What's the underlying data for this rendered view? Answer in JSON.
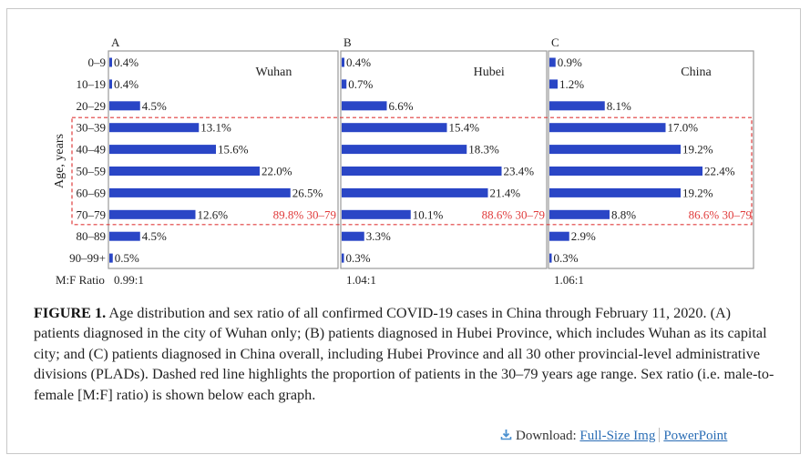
{
  "chart_data": {
    "type": "bar",
    "orientation": "horizontal",
    "ylabel": "Age, years",
    "categories": [
      "0–9",
      "10–19",
      "20–29",
      "30–39",
      "40–49",
      "50–59",
      "60–69",
      "70–79",
      "80–89",
      "90–99+"
    ],
    "ratio_label": "M:F Ratio",
    "bar_color": "#2a46c6",
    "highlight_color": "#e03c3c",
    "panels": [
      {
        "letter": "A",
        "name": "Wuhan",
        "values": [
          0.4,
          0.4,
          4.5,
          13.1,
          15.6,
          22.0,
          26.5,
          12.6,
          4.5,
          0.5
        ],
        "labels": [
          "0.4%",
          "0.4%",
          "4.5%",
          "13.1%",
          "15.6%",
          "22.0%",
          "26.5%",
          "12.6%",
          "4.5%",
          "0.5%"
        ],
        "highlight_label": "89.8% 30–79",
        "ratio": "0.99:1"
      },
      {
        "letter": "B",
        "name": "Hubei",
        "values": [
          0.4,
          0.7,
          6.6,
          15.4,
          18.3,
          23.4,
          21.4,
          10.1,
          3.3,
          0.3
        ],
        "labels": [
          "0.4%",
          "0.7%",
          "6.6%",
          "15.4%",
          "18.3%",
          "23.4%",
          "21.4%",
          "10.1%",
          "3.3%",
          "0.3%"
        ],
        "highlight_label": "88.6% 30–79",
        "ratio": "1.04:1"
      },
      {
        "letter": "C",
        "name": "China",
        "values": [
          0.9,
          1.2,
          8.1,
          17.0,
          19.2,
          22.4,
          19.2,
          8.8,
          2.9,
          0.3
        ],
        "labels": [
          "0.9%",
          "1.2%",
          "8.1%",
          "17.0%",
          "19.2%",
          "22.4%",
          "19.2%",
          "8.8%",
          "2.9%",
          "0.3%"
        ],
        "highlight_label": "86.6% 30–79",
        "ratio": "1.06:1"
      }
    ],
    "highlight_range": [
      "30–39",
      "70–79"
    ]
  },
  "caption": {
    "label": "FIGURE 1.",
    "text": "Age distribution and sex ratio of all confirmed COVID-19 cases in China through February 11, 2020. (A) patients diagnosed in the city of Wuhan only; (B) patients diagnosed in Hubei Province, which includes Wuhan as its capital city; and (C) patients diagnosed in China overall, including Hubei Province and all 30 other provincial-level administrative divisions (PLADs). Dashed red line highlights the proportion of patients in the 30–79 years age range. Sex ratio (i.e. male-to-female [M:F] ratio) is shown below each graph."
  },
  "download": {
    "label": "Download:",
    "full_size": "Full-Size Img",
    "powerpoint": "PowerPoint"
  }
}
